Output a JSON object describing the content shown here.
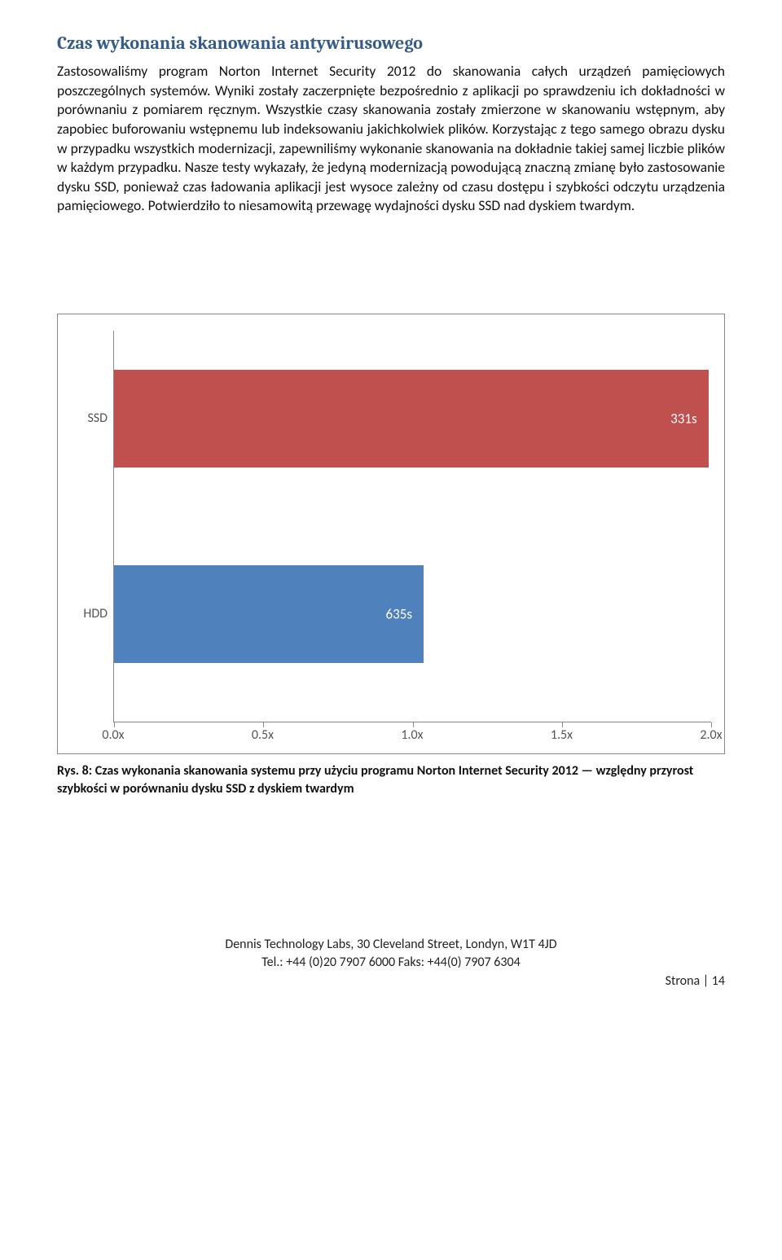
{
  "title": "Czas wykonania skanowania antywirusowego",
  "body": "Zastosowaliśmy program Norton Internet Security 2012 do skanowania całych urządzeń pamięciowych poszczególnych systemów. Wyniki zostały zaczerpnięte bezpośrednio z aplikacji po sprawdzeniu ich dokładności w porównaniu z pomiarem ręcznym. Wszystkie czasy skanowania zostały zmierzone w skanowaniu wstępnym, aby zapobiec buforowaniu wstępnemu lub indeksowaniu jakichkolwiek plików. Korzystając z tego samego obrazu dysku w przypadku wszystkich modernizacji, zapewniliśmy wykonanie skanowania na dokładnie takiej samej liczbie plików w każdym przypadku. Nasze testy wykazały, że jedyną modernizacją powodującą znaczną zmianę było zastosowanie dysku SSD, ponieważ czas ładowania aplikacji jest wysoce zależny od czasu dostępu i szybkości odczytu urządzenia pamięciowego. Potwierdziło to niesamowitą przewagę wydajności dysku SSD nad dyskiem twardym.",
  "chart": {
    "type": "bar-horizontal",
    "x_min": 0.0,
    "x_max": 2.0,
    "x_ticks": [
      "0.0x",
      "0.5x",
      "1.0x",
      "1.5x",
      "2.0x"
    ],
    "bars": [
      {
        "label": "SSD",
        "value_label": "331s",
        "extent": 1.92,
        "color": "#c0504e"
      },
      {
        "label": "HDD",
        "value_label": "635s",
        "extent": 1.0,
        "color": "#4f81bc"
      }
    ],
    "border_color": "#888888",
    "text_color": "#555555",
    "value_text_color": "#ffffff"
  },
  "caption": "Rys. 8: Czas wykonania skanowania systemu przy użyciu programu Norton Internet Security 2012 — względny przyrost szybkości w porównaniu dysku SSD z dyskiem twardym",
  "footer": {
    "line1": "Dennis Technology Labs, 30 Cleveland Street, Londyn, W1T 4JD",
    "line2": "Tel.: +44 (0)20 7907 6000 Faks: +44(0) 7907 6304",
    "page": "Strona | 14"
  }
}
